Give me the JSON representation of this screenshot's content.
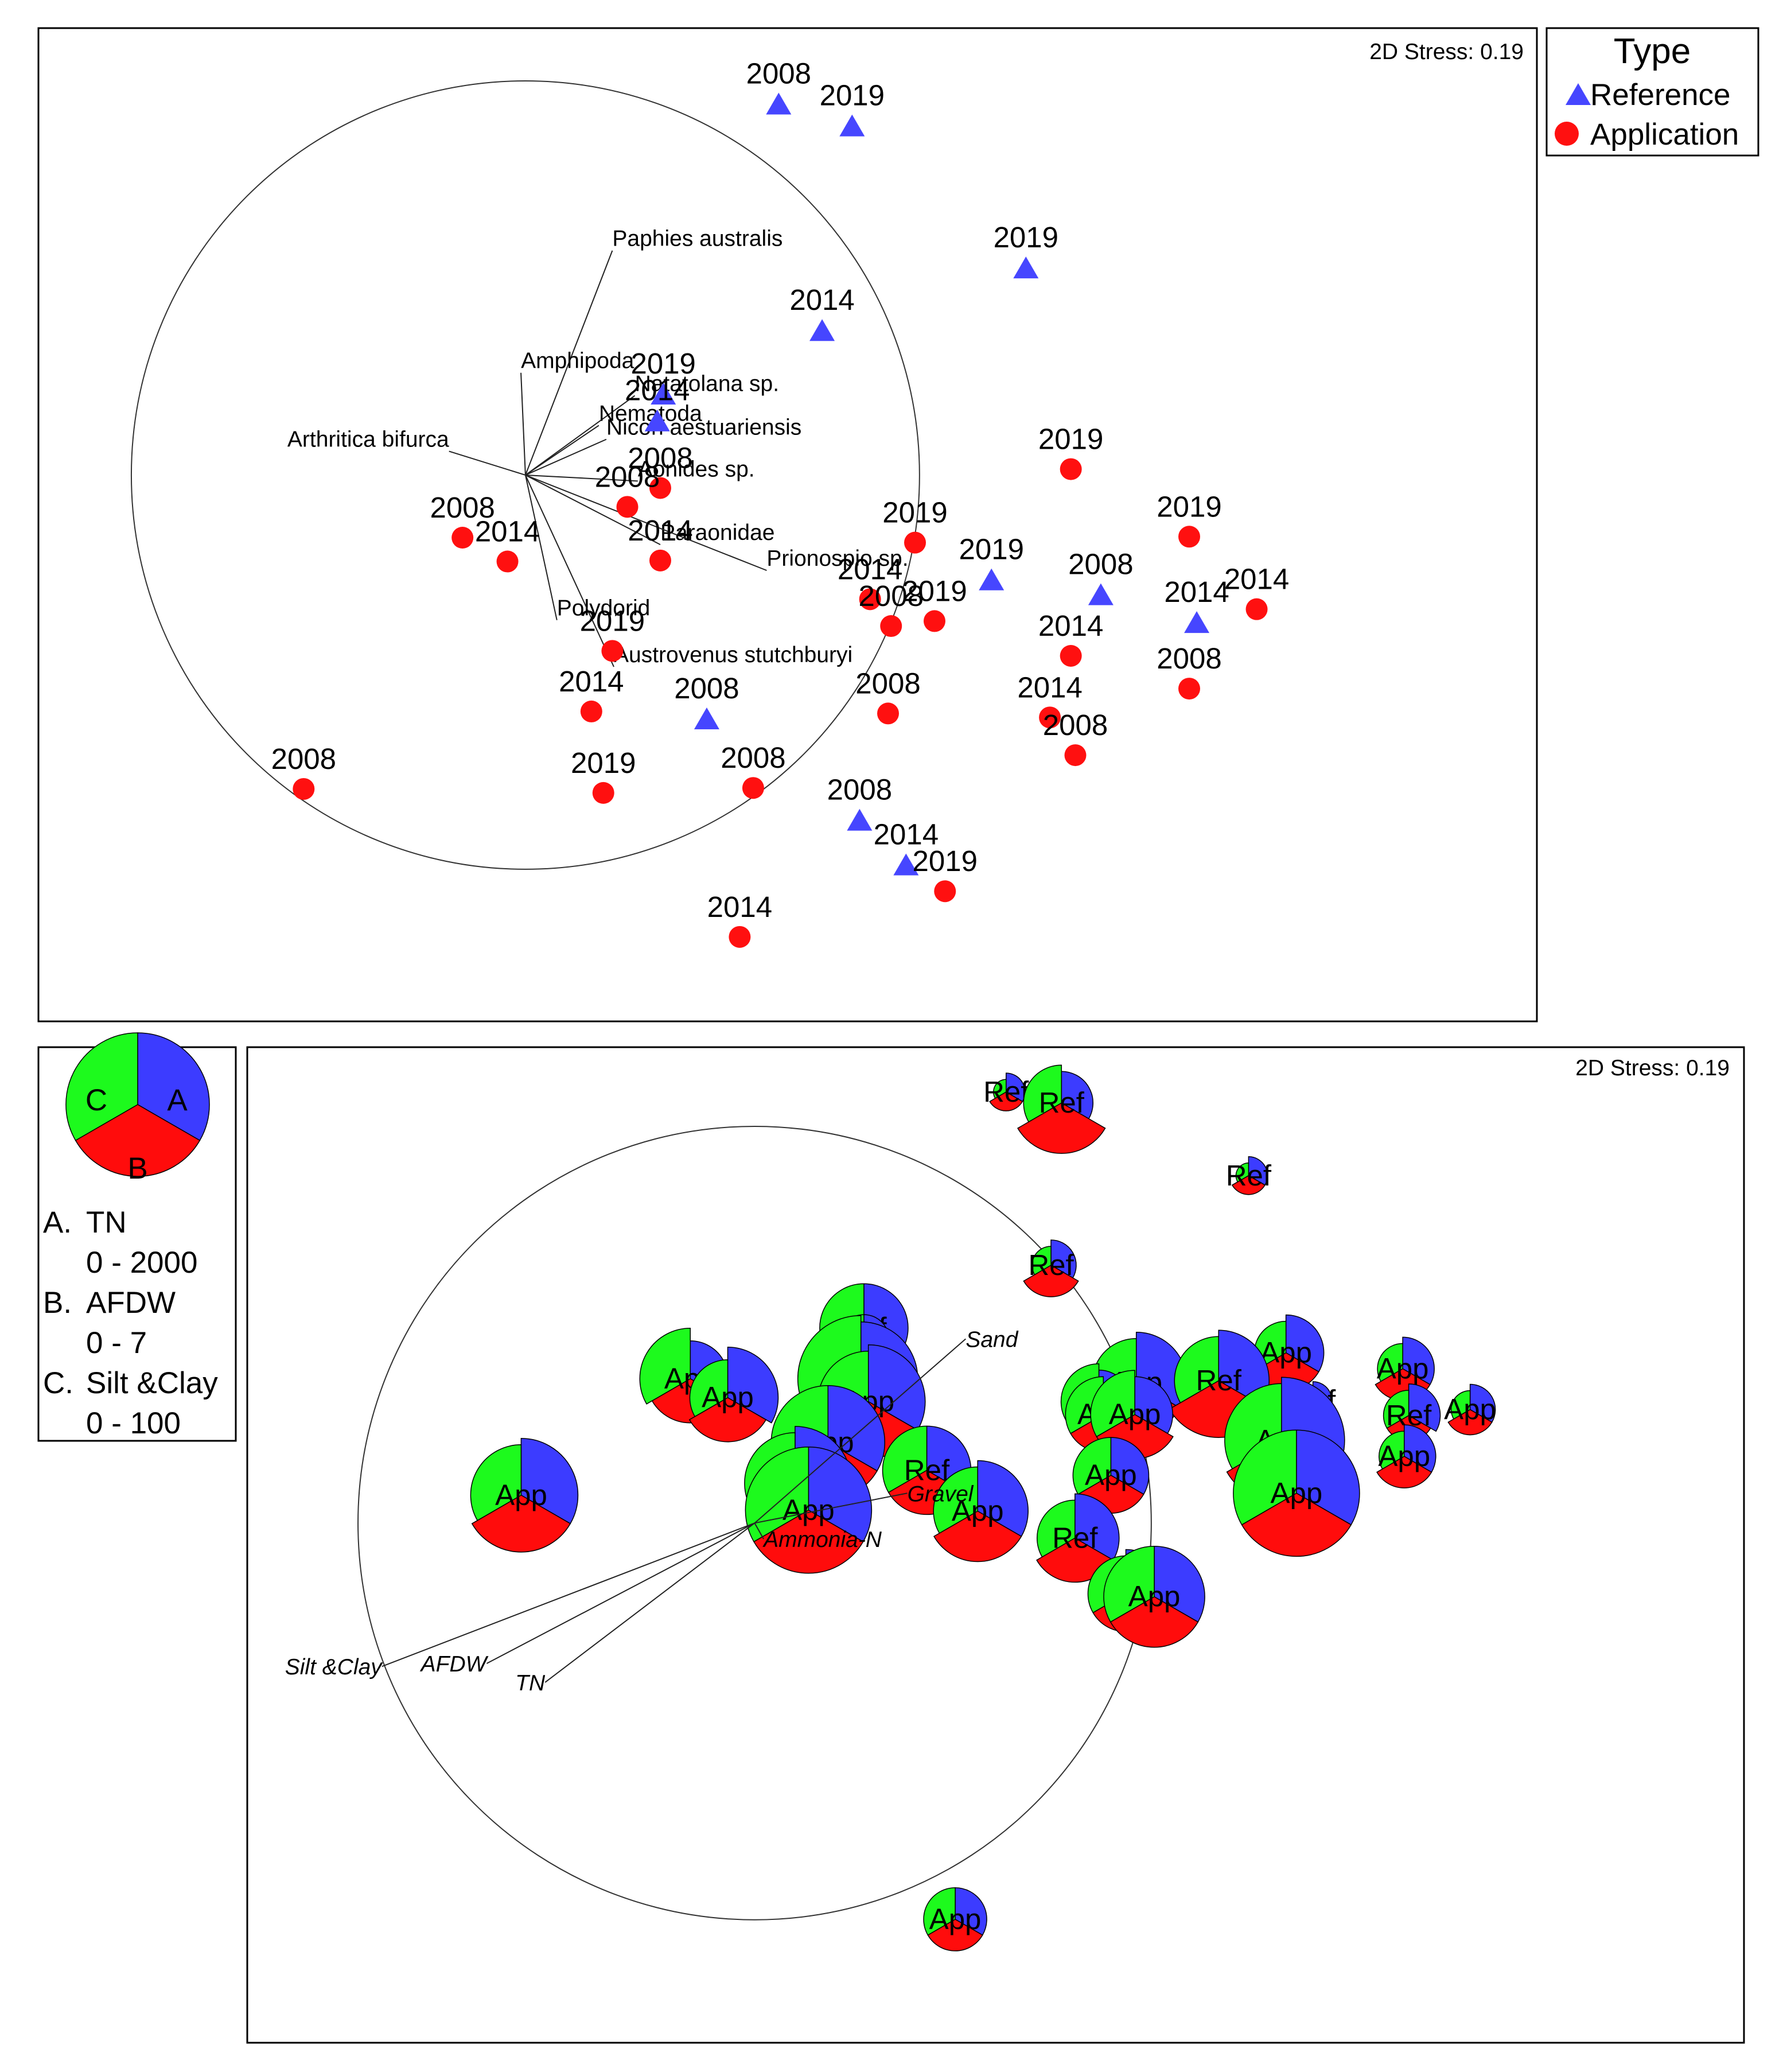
{
  "colors": {
    "reference": "#4646ff",
    "application": "#ff1010",
    "pie_a": "#3c3cff",
    "pie_b": "#ff0c0c",
    "pie_c": "#1dfa1d"
  },
  "chart_data": [
    {
      "type": "scatter",
      "title": "",
      "stress_label": "2D Stress: 0.19",
      "legend": {
        "title": "Type",
        "position": "top-right",
        "entries": [
          {
            "label": "Reference",
            "marker": "triangle"
          },
          {
            "label": "Application",
            "marker": "circle"
          }
        ]
      },
      "xlim": [
        0,
        100
      ],
      "ylim": [
        0,
        100
      ],
      "correlation_circle": {
        "cx": 32.5,
        "cy": 55,
        "r": 26.3
      },
      "points": [
        {
          "label": "2008",
          "type": "Reference",
          "x": 49.4,
          "y": 92.4
        },
        {
          "label": "2019",
          "type": "Reference",
          "x": 54.3,
          "y": 90.2
        },
        {
          "label": "2019",
          "type": "Reference",
          "x": 65.9,
          "y": 75.9
        },
        {
          "label": "2014",
          "type": "Reference",
          "x": 52.3,
          "y": 69.6
        },
        {
          "label": "2019",
          "type": "Reference",
          "x": 41.7,
          "y": 63.2
        },
        {
          "label": "2014",
          "type": "Reference",
          "x": 41.3,
          "y": 60.5
        },
        {
          "label": "2019",
          "type": "Application",
          "x": 68.9,
          "y": 55.6
        },
        {
          "label": "2008",
          "type": "Application",
          "x": 41.5,
          "y": 53.7
        },
        {
          "label": "2008",
          "type": "Application",
          "x": 39.3,
          "y": 51.8
        },
        {
          "label": "2008",
          "type": "Application",
          "x": 28.3,
          "y": 48.7
        },
        {
          "label": "2014",
          "type": "Application",
          "x": 31.3,
          "y": 46.3
        },
        {
          "label": "2014",
          "type": "Application",
          "x": 41.5,
          "y": 46.4
        },
        {
          "label": "2019",
          "type": "Application",
          "x": 58.5,
          "y": 48.2
        },
        {
          "label": "2019",
          "type": "Reference",
          "x": 63.6,
          "y": 44.5
        },
        {
          "label": "2019",
          "type": "Application",
          "x": 76.8,
          "y": 48.8
        },
        {
          "label": "2008",
          "type": "Reference",
          "x": 70.9,
          "y": 43.0
        },
        {
          "label": "2014",
          "type": "Application",
          "x": 55.5,
          "y": 42.5
        },
        {
          "label": "2008",
          "type": "Application",
          "x": 56.9,
          "y": 39.8
        },
        {
          "label": "2019",
          "type": "Application",
          "x": 59.8,
          "y": 40.3
        },
        {
          "label": "2014",
          "type": "Reference",
          "x": 77.3,
          "y": 40.2
        },
        {
          "label": "2014",
          "type": "Application",
          "x": 81.3,
          "y": 41.5
        },
        {
          "label": "2019",
          "type": "Application",
          "x": 38.3,
          "y": 37.3
        },
        {
          "label": "2014",
          "type": "Application",
          "x": 68.9,
          "y": 36.8
        },
        {
          "label": "2008",
          "type": "Application",
          "x": 76.8,
          "y": 33.5
        },
        {
          "label": "2014",
          "type": "Application",
          "x": 36.9,
          "y": 31.2
        },
        {
          "label": "2008",
          "type": "Reference",
          "x": 44.6,
          "y": 30.5
        },
        {
          "label": "2008",
          "type": "Application",
          "x": 56.7,
          "y": 31.0
        },
        {
          "label": "2014",
          "type": "Application",
          "x": 67.5,
          "y": 30.6
        },
        {
          "label": "2008",
          "type": "Application",
          "x": 69.2,
          "y": 26.8
        },
        {
          "label": "2008",
          "type": "Application",
          "x": 17.7,
          "y": 23.4
        },
        {
          "label": "2019",
          "type": "Application",
          "x": 37.7,
          "y": 23.0
        },
        {
          "label": "2008",
          "type": "Application",
          "x": 47.7,
          "y": 23.5
        },
        {
          "label": "2008",
          "type": "Reference",
          "x": 54.8,
          "y": 20.3
        },
        {
          "label": "2014",
          "type": "Reference",
          "x": 57.9,
          "y": 15.8
        },
        {
          "label": "2019",
          "type": "Application",
          "x": 60.5,
          "y": 13.1
        },
        {
          "label": "2014",
          "type": "Application",
          "x": 46.8,
          "y": 8.5
        }
      ],
      "vectors": [
        {
          "label": "Paphies australis",
          "x": 38.3,
          "y": 77.6
        },
        {
          "label": "Amphipoda",
          "x": 32.2,
          "y": 65.3
        },
        {
          "label": "Natatolana sp.",
          "x": 39.8,
          "y": 63.0
        },
        {
          "label": "Nematoda",
          "x": 37.4,
          "y": 60.0
        },
        {
          "label": "Nicon aestuariensis",
          "x": 37.9,
          "y": 58.6
        },
        {
          "label": "Arthritica bifurca",
          "x": 27.4,
          "y": 57.4
        },
        {
          "label": "Aonides sp.",
          "x": 40.0,
          "y": 54.4
        },
        {
          "label": "Paraonidae",
          "x": 41.5,
          "y": 48.0
        },
        {
          "label": "Prionospio sp.",
          "x": 48.6,
          "y": 45.4
        },
        {
          "label": "Polydorid",
          "x": 34.6,
          "y": 40.4
        },
        {
          "label": "Austrovenus stutchburyi",
          "x": 38.4,
          "y": 35.7
        }
      ]
    },
    {
      "type": "scatter",
      "title": "",
      "stress_label": "2D Stress: 0.19",
      "legend": {
        "position": "top-left",
        "glyph_labels": {
          "A": "A",
          "B": "B",
          "C": "C"
        },
        "entries": [
          {
            "key": "A.",
            "variable": "TN",
            "range": "0 - 2000"
          },
          {
            "key": "B.",
            "variable": "AFDW",
            "range": "0 - 7"
          },
          {
            "key": "C.",
            "variable": "Silt &Clay",
            "range": "0 - 100"
          }
        ]
      },
      "xlim": [
        0,
        100
      ],
      "ylim": [
        0,
        100
      ],
      "correlation_circle": {
        "cx": 33.9,
        "cy": 52.2,
        "r": 26.5
      },
      "points": [
        {
          "label": "Ref",
          "x": 50.7,
          "y": 95.5,
          "A": 0.3,
          "B": 0.3,
          "C": 0.2
        },
        {
          "label": "Ref",
          "x": 54.4,
          "y": 94.4,
          "A": 0.5,
          "B": 0.8,
          "C": 0.6
        },
        {
          "label": "Ref",
          "x": 66.9,
          "y": 87.1,
          "A": 0.3,
          "B": 0.3,
          "C": 0.2
        },
        {
          "label": "Ref",
          "x": 53.7,
          "y": 78.1,
          "A": 0.4,
          "B": 0.5,
          "C": 0.3
        },
        {
          "label": "Ref",
          "x": 41.2,
          "y": 71.8,
          "A": 0.7,
          "B": 0.6,
          "C": 0.7
        },
        {
          "label": "Ref",
          "x": 41.2,
          "y": 70.6,
          "A": 0.4,
          "B": 0.4,
          "C": 0.4
        },
        {
          "label": "App",
          "x": 41.0,
          "y": 66.7,
          "A": 0.9,
          "B": 0.8,
          "C": 1.0
        },
        {
          "label": "App",
          "x": 40.3,
          "y": 65.0,
          "A": 0.6,
          "B": 0.6,
          "C": 0.5
        },
        {
          "label": "App",
          "x": 69.4,
          "y": 69.3,
          "A": 0.6,
          "B": 0.6,
          "C": 0.5
        },
        {
          "label": "App",
          "x": 29.6,
          "y": 66.7,
          "A": 0.6,
          "B": 0.7,
          "C": 0.8
        },
        {
          "label": "App",
          "x": 32.1,
          "y": 64.8,
          "A": 0.8,
          "B": 0.7,
          "C": 0.6
        },
        {
          "label": "App",
          "x": 41.5,
          "y": 64.4,
          "A": 0.9,
          "B": 0.9,
          "C": 0.8
        },
        {
          "label": "App",
          "x": 59.4,
          "y": 66.3,
          "A": 0.8,
          "B": 0.8,
          "C": 0.7
        },
        {
          "label": "App",
          "x": 77.2,
          "y": 67.7,
          "A": 0.5,
          "B": 0.5,
          "C": 0.4
        },
        {
          "label": "Ref",
          "x": 64.9,
          "y": 66.5,
          "A": 0.8,
          "B": 0.9,
          "C": 0.7
        },
        {
          "label": "Ref",
          "x": 71.2,
          "y": 64.5,
          "A": 0.3,
          "B": 0.3,
          "C": 0.2
        },
        {
          "label": "App",
          "x": 56.9,
          "y": 64.4,
          "A": 0.5,
          "B": 0.6,
          "C": 0.6
        },
        {
          "label": "App",
          "x": 57.2,
          "y": 63.1,
          "A": 0.5,
          "B": 0.6,
          "C": 0.6
        },
        {
          "label": "App",
          "x": 59.3,
          "y": 63.1,
          "A": 0.6,
          "B": 0.7,
          "C": 0.7
        },
        {
          "label": "Ref",
          "x": 77.6,
          "y": 63.0,
          "A": 0.5,
          "B": 0.4,
          "C": 0.4
        },
        {
          "label": "App",
          "x": 81.7,
          "y": 63.6,
          "A": 0.4,
          "B": 0.4,
          "C": 0.3
        },
        {
          "label": "App",
          "x": 38.8,
          "y": 60.3,
          "A": 0.9,
          "B": 0.9,
          "C": 0.9
        },
        {
          "label": "App",
          "x": 69.1,
          "y": 60.5,
          "A": 1.0,
          "B": 1.0,
          "C": 0.9
        },
        {
          "label": "App",
          "x": 77.3,
          "y": 58.9,
          "A": 0.5,
          "B": 0.5,
          "C": 0.4
        },
        {
          "label": "App",
          "x": 36.6,
          "y": 56.2,
          "A": 0.9,
          "B": 0.9,
          "C": 0.8
        },
        {
          "label": "Ref",
          "x": 45.4,
          "y": 57.5,
          "A": 0.7,
          "B": 0.7,
          "C": 0.7
        },
        {
          "label": "App",
          "x": 57.7,
          "y": 57.0,
          "A": 0.6,
          "B": 0.6,
          "C": 0.6
        },
        {
          "label": "App",
          "x": 68.6,
          "y": 56.5,
          "A": 0.6,
          "B": 0.5,
          "C": 0.4
        },
        {
          "label": "App",
          "x": 70.1,
          "y": 55.2,
          "A": 1.0,
          "B": 1.0,
          "C": 1.0
        },
        {
          "label": "App",
          "x": 18.3,
          "y": 55.0,
          "A": 0.9,
          "B": 0.9,
          "C": 0.8
        },
        {
          "label": "App",
          "x": 37.5,
          "y": 53.5,
          "A": 1.0,
          "B": 1.0,
          "C": 1.0
        },
        {
          "label": "App",
          "x": 48.8,
          "y": 53.4,
          "A": 0.8,
          "B": 0.8,
          "C": 0.7
        },
        {
          "label": "Ref",
          "x": 55.3,
          "y": 50.7,
          "A": 0.7,
          "B": 0.7,
          "C": 0.6
        },
        {
          "label": "Ref",
          "x": 58.7,
          "y": 45.1,
          "A": 0.7,
          "B": 0.6,
          "C": 0.6
        },
        {
          "label": "App",
          "x": 60.6,
          "y": 44.8,
          "A": 0.8,
          "B": 0.8,
          "C": 0.8
        },
        {
          "label": "App",
          "x": 47.3,
          "y": 12.4,
          "A": 0.5,
          "B": 0.5,
          "C": 0.5
        }
      ],
      "vectors": [
        {
          "label": "Sand",
          "x": 48.0,
          "y": 70.7
        },
        {
          "label": "Gravel",
          "x": 44.1,
          "y": 55.2
        },
        {
          "label": "Ammonia-N",
          "x": 34.5,
          "y": 50.6
        },
        {
          "label": "AFDW",
          "x": 16.0,
          "y": 38.1
        },
        {
          "label": "TN",
          "x": 19.9,
          "y": 36.2
        },
        {
          "label": "Silt &Clay",
          "x": 9.0,
          "y": 37.8
        }
      ]
    }
  ]
}
